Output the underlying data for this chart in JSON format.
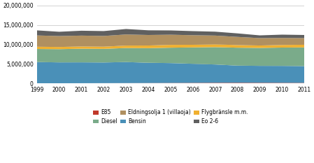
{
  "years": [
    1999,
    2000,
    2001,
    2002,
    2003,
    2004,
    2005,
    2006,
    2007,
    2008,
    2009,
    2010,
    2011
  ],
  "series": {
    "E85": [
      5000,
      15000,
      25000,
      40000,
      55000,
      70000,
      90000,
      110000,
      130000,
      140000,
      130000,
      120000,
      110000
    ],
    "Bensin": [
      5450000,
      5350000,
      5350000,
      5300000,
      5400000,
      5200000,
      5100000,
      4900000,
      4700000,
      4400000,
      4350000,
      4350000,
      4300000
    ],
    "Diesel": [
      3350000,
      3400000,
      3500000,
      3500000,
      3600000,
      3750000,
      3950000,
      4200000,
      4450000,
      4600000,
      4600000,
      4700000,
      4800000
    ],
    "Flygbransle": [
      580000,
      560000,
      570000,
      560000,
      630000,
      680000,
      730000,
      680000,
      720000,
      670000,
      620000,
      670000,
      690000
    ],
    "Eldningsolja": [
      2900000,
      2800000,
      2800000,
      2750000,
      2850000,
      2700000,
      2600000,
      2450000,
      2250000,
      2100000,
      1900000,
      1800000,
      1700000
    ],
    "Eo26": [
      1300000,
      1100000,
      1250000,
      1250000,
      1400000,
      1200000,
      1100000,
      1050000,
      1000000,
      900000,
      700000,
      850000,
      800000
    ]
  },
  "colors": {
    "E85": "#c0392b",
    "Bensin": "#4a90b8",
    "Diesel": "#7aab8a",
    "Flygbransle": "#f0b030",
    "Eldningsolja": "#b09060",
    "Eo26": "#606060"
  },
  "labels": {
    "E85": "E85",
    "Bensin": "Bensin",
    "Diesel": "Diesel",
    "Flygbransle": "Flygbränsle m.m.",
    "Eldningsolja": "Eldningsolja 1 (villaoja)",
    "Eo26": "Eo 2-6"
  },
  "ylim": [
    0,
    20000000
  ],
  "yticks": [
    0,
    5000000,
    10000000,
    15000000,
    20000000
  ],
  "background_color": "#ffffff",
  "plot_bg": "#ffffff"
}
